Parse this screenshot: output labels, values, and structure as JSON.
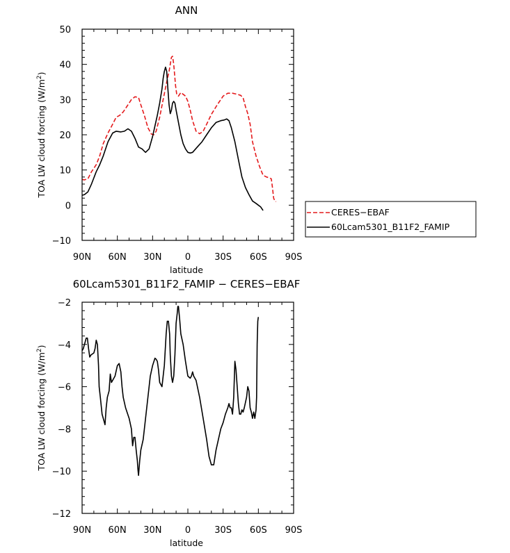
{
  "chart_data": [
    {
      "type": "line",
      "title": "ANN",
      "xlabel": "latitude",
      "ylabel": "TOA LW cloud forcing (W/m",
      "ylabel_sup": "2",
      "ylabel_close": ")",
      "xlim": [
        90,
        -90
      ],
      "ylim": [
        -10,
        50
      ],
      "x_ticks": [
        90,
        60,
        30,
        0,
        -30,
        -60,
        -90
      ],
      "x_tick_labels": [
        "90N",
        "60N",
        "30N",
        "0",
        "30S",
        "60S",
        "90S"
      ],
      "y_ticks": [
        -10,
        0,
        10,
        20,
        30,
        40,
        50
      ],
      "y_tick_labels": [
        "−10",
        "0",
        "10",
        "20",
        "30",
        "40",
        "50"
      ],
      "legend": "outside-right",
      "colors": {
        "CERES-EBAF": "#e41a1c",
        "60Lcam5301_B11F2_FAMIP": "#000000"
      },
      "series": [
        {
          "name": "CERES-EBAF",
          "style": "dashed",
          "points": [
            [
              90,
              7.3
            ],
            [
              88,
              7.2
            ],
            [
              85,
              7.5
            ],
            [
              82,
              9.5
            ],
            [
              78,
              11.5
            ],
            [
              75,
              14
            ],
            [
              72,
              17.5
            ],
            [
              68,
              20.5
            ],
            [
              64,
              23
            ],
            [
              61,
              25
            ],
            [
              58,
              25.5
            ],
            [
              55,
              26.5
            ],
            [
              52,
              28
            ],
            [
              48,
              30
            ],
            [
              45,
              30.8
            ],
            [
              42,
              30.6
            ],
            [
              40,
              28.5
            ],
            [
              37,
              25.5
            ],
            [
              34,
              22
            ],
            [
              31,
              20.2
            ],
            [
              29,
              20
            ],
            [
              27,
              21
            ],
            [
              24,
              25
            ],
            [
              21,
              30
            ],
            [
              18,
              35
            ],
            [
              16,
              38
            ],
            [
              15,
              40
            ],
            [
              14,
              42
            ],
            [
              13,
              42.3
            ],
            [
              12,
              40
            ],
            [
              10.5,
              34
            ],
            [
              9.5,
              31.5
            ],
            [
              8,
              31
            ],
            [
              6,
              32
            ],
            [
              4,
              31.5
            ],
            [
              2,
              31
            ],
            [
              0,
              29.5
            ],
            [
              -2,
              27
            ],
            [
              -4,
              24
            ],
            [
              -7,
              21
            ],
            [
              -10,
              20.3
            ],
            [
              -13,
              21
            ],
            [
              -16,
              23
            ],
            [
              -20,
              25.8
            ],
            [
              -25,
              28.5
            ],
            [
              -30,
              31
            ],
            [
              -34,
              31.8
            ],
            [
              -38,
              31.8
            ],
            [
              -42,
              31.5
            ],
            [
              -45,
              31.2
            ],
            [
              -47,
              30.5
            ],
            [
              -49,
              28
            ],
            [
              -51,
              26
            ],
            [
              -53,
              23
            ],
            [
              -55,
              18
            ],
            [
              -58,
              14
            ],
            [
              -61,
              11
            ],
            [
              -64,
              8.5
            ],
            [
              -67,
              8
            ],
            [
              -69,
              7.8
            ],
            [
              -71,
              7.5
            ],
            [
              -72,
              5
            ],
            [
              -73,
              2
            ],
            [
              -74,
              1.2
            ],
            [
              -75,
              1
            ]
          ]
        },
        {
          "name": "60Lcam5301_B11F2_FAMIP",
          "style": "solid",
          "points": [
            [
              90,
              2.8
            ],
            [
              88,
              3
            ],
            [
              85,
              3.8
            ],
            [
              82,
              6
            ],
            [
              78,
              9.5
            ],
            [
              75,
              11.5
            ],
            [
              72,
              14
            ],
            [
              68,
              18
            ],
            [
              64,
              20.5
            ],
            [
              61,
              21
            ],
            [
              57,
              20.8
            ],
            [
              54,
              21
            ],
            [
              51,
              21.7
            ],
            [
              48,
              21
            ],
            [
              45,
              19
            ],
            [
              42,
              16.5
            ],
            [
              39,
              16
            ],
            [
              36,
              15
            ],
            [
              33,
              16
            ],
            [
              30,
              19.5
            ],
            [
              28,
              22.5
            ],
            [
              26,
              25.5
            ],
            [
              24,
              29
            ],
            [
              22,
              33
            ],
            [
              21,
              36
            ],
            [
              20,
              38
            ],
            [
              19,
              39.2
            ],
            [
              18,
              38
            ],
            [
              17,
              33
            ],
            [
              16,
              28.5
            ],
            [
              15,
              26
            ],
            [
              14,
              27
            ],
            [
              13,
              29
            ],
            [
              12,
              29.5
            ],
            [
              11,
              29
            ],
            [
              10,
              27
            ],
            [
              8,
              23.5
            ],
            [
              6,
              20
            ],
            [
              4,
              17.5
            ],
            [
              2,
              16
            ],
            [
              0,
              15
            ],
            [
              -2,
              14.8
            ],
            [
              -4,
              15
            ],
            [
              -8,
              16.5
            ],
            [
              -12,
              18
            ],
            [
              -16,
              20
            ],
            [
              -20,
              22
            ],
            [
              -24,
              23.5
            ],
            [
              -28,
              24
            ],
            [
              -31,
              24.2
            ],
            [
              -33,
              24.5
            ],
            [
              -35,
              24
            ],
            [
              -37,
              22
            ],
            [
              -40,
              18
            ],
            [
              -43,
              13
            ],
            [
              -46,
              8
            ],
            [
              -49,
              5
            ],
            [
              -52,
              3
            ],
            [
              -55,
              1.2
            ],
            [
              -58,
              0.5
            ],
            [
              -60,
              0
            ],
            [
              -62,
              -0.5
            ],
            [
              -63,
              -1
            ],
            [
              -64,
              -1.5
            ]
          ]
        }
      ]
    },
    {
      "type": "line",
      "title": "60Lcam5301_B11F2_FAMIP − CERES−EBAF",
      "xlabel": "latitude",
      "ylabel": "TOA LW cloud forcing (W/m",
      "ylabel_sup": "2",
      "ylabel_close": ")",
      "xlim": [
        90,
        -90
      ],
      "ylim": [
        -12,
        -2
      ],
      "x_ticks": [
        90,
        60,
        30,
        0,
        -30,
        -60,
        -90
      ],
      "x_tick_labels": [
        "90N",
        "60N",
        "30N",
        "0",
        "30S",
        "60S",
        "90S"
      ],
      "y_ticks": [
        -12,
        -10,
        -8,
        -6,
        -4,
        -2
      ],
      "y_tick_labels": [
        "−12",
        "−10",
        "−8",
        "−6",
        "−4",
        "−2"
      ],
      "series": [
        {
          "style": "solid",
          "points": [
            [
              90,
              -4.3
            ],
            [
              89,
              -4.2
            ],
            [
              88,
              -4
            ],
            [
              86.5,
              -3.7
            ],
            [
              85.5,
              -3.7
            ],
            [
              84.5,
              -4.2
            ],
            [
              83.5,
              -4.6
            ],
            [
              82.5,
              -4.5
            ],
            [
              80,
              -4.4
            ],
            [
              79,
              -4.2
            ],
            [
              78,
              -3.8
            ],
            [
              77,
              -4
            ],
            [
              76,
              -5
            ],
            [
              75.5,
              -6
            ],
            [
              74.5,
              -6.5
            ],
            [
              73,
              -7.3
            ],
            [
              71,
              -7.7
            ],
            [
              70.5,
              -7.8
            ],
            [
              69.5,
              -7
            ],
            [
              68.5,
              -6.5
            ],
            [
              67,
              -6.2
            ],
            [
              66,
              -5.4
            ],
            [
              65,
              -5.8
            ],
            [
              64,
              -5.7
            ],
            [
              62,
              -5.5
            ],
            [
              60,
              -5
            ],
            [
              58.5,
              -4.9
            ],
            [
              57,
              -5.3
            ],
            [
              56,
              -6
            ],
            [
              55,
              -6.5
            ],
            [
              53,
              -7
            ],
            [
              50,
              -7.5
            ],
            [
              48,
              -8
            ],
            [
              47,
              -8.8
            ],
            [
              46,
              -8.4
            ],
            [
              45,
              -8.4
            ],
            [
              44,
              -9
            ],
            [
              43,
              -9.5
            ],
            [
              42.5,
              -9.9
            ],
            [
              42,
              -10.2
            ],
            [
              41,
              -9.5
            ],
            [
              40,
              -9
            ],
            [
              38,
              -8.5
            ],
            [
              36,
              -7.5
            ],
            [
              34,
              -6.5
            ],
            [
              32,
              -5.5
            ],
            [
              30,
              -5
            ],
            [
              28,
              -4.65
            ],
            [
              27,
              -4.7
            ],
            [
              26,
              -4.8
            ],
            [
              25,
              -5.2
            ],
            [
              24,
              -5.8
            ],
            [
              22,
              -6
            ],
            [
              21,
              -5.5
            ],
            [
              20,
              -5
            ],
            [
              18.5,
              -3.5
            ],
            [
              17.5,
              -2.9
            ],
            [
              16.5,
              -2.9
            ],
            [
              15.5,
              -3.5
            ],
            [
              15,
              -4.5
            ],
            [
              14,
              -5.5
            ],
            [
              13,
              -5.8
            ],
            [
              12,
              -5.5
            ],
            [
              11,
              -4.5
            ],
            [
              10,
              -3
            ],
            [
              9,
              -2.5
            ],
            [
              8.5,
              -2.2
            ],
            [
              8,
              -2.2
            ],
            [
              7,
              -2.8
            ],
            [
              6,
              -3.5
            ],
            [
              4,
              -4
            ],
            [
              2,
              -4.8
            ],
            [
              0,
              -5.5
            ],
            [
              -2,
              -5.6
            ],
            [
              -3,
              -5.5
            ],
            [
              -4,
              -5.3
            ],
            [
              -5,
              -5.5
            ],
            [
              -7,
              -5.7
            ],
            [
              -10,
              -6.5
            ],
            [
              -13,
              -7.5
            ],
            [
              -16,
              -8.5
            ],
            [
              -18,
              -9.3
            ],
            [
              -20,
              -9.7
            ],
            [
              -22,
              -9.7
            ],
            [
              -24,
              -9
            ],
            [
              -26,
              -8.5
            ],
            [
              -28,
              -8
            ],
            [
              -30,
              -7.7
            ],
            [
              -32,
              -7.3
            ],
            [
              -34,
              -7
            ],
            [
              -35,
              -6.8
            ],
            [
              -36,
              -7
            ],
            [
              -37,
              -7
            ],
            [
              -38,
              -7.3
            ],
            [
              -39,
              -6.5
            ],
            [
              -40,
              -4.8
            ],
            [
              -41,
              -5.2
            ],
            [
              -42,
              -6
            ],
            [
              -43,
              -6.8
            ],
            [
              -44,
              -7.3
            ],
            [
              -45,
              -7.3
            ],
            [
              -46,
              -7.1
            ],
            [
              -47,
              -7.2
            ],
            [
              -48,
              -7
            ],
            [
              -50,
              -6.5
            ],
            [
              -51,
              -6
            ],
            [
              -52,
              -6.2
            ],
            [
              -53,
              -7
            ],
            [
              -54,
              -7.2
            ],
            [
              -55,
              -7.5
            ],
            [
              -56,
              -7.2
            ],
            [
              -57,
              -7.5
            ],
            [
              -58,
              -7.1
            ],
            [
              -58.5,
              -6.5
            ],
            [
              -59,
              -4
            ],
            [
              -59.5,
              -2.9
            ],
            [
              -60,
              -2.7
            ]
          ]
        }
      ]
    }
  ],
  "legend": {
    "entries": [
      "CERES−EBAF",
      "60Lcam5301_B11F2_FAMIP"
    ]
  }
}
